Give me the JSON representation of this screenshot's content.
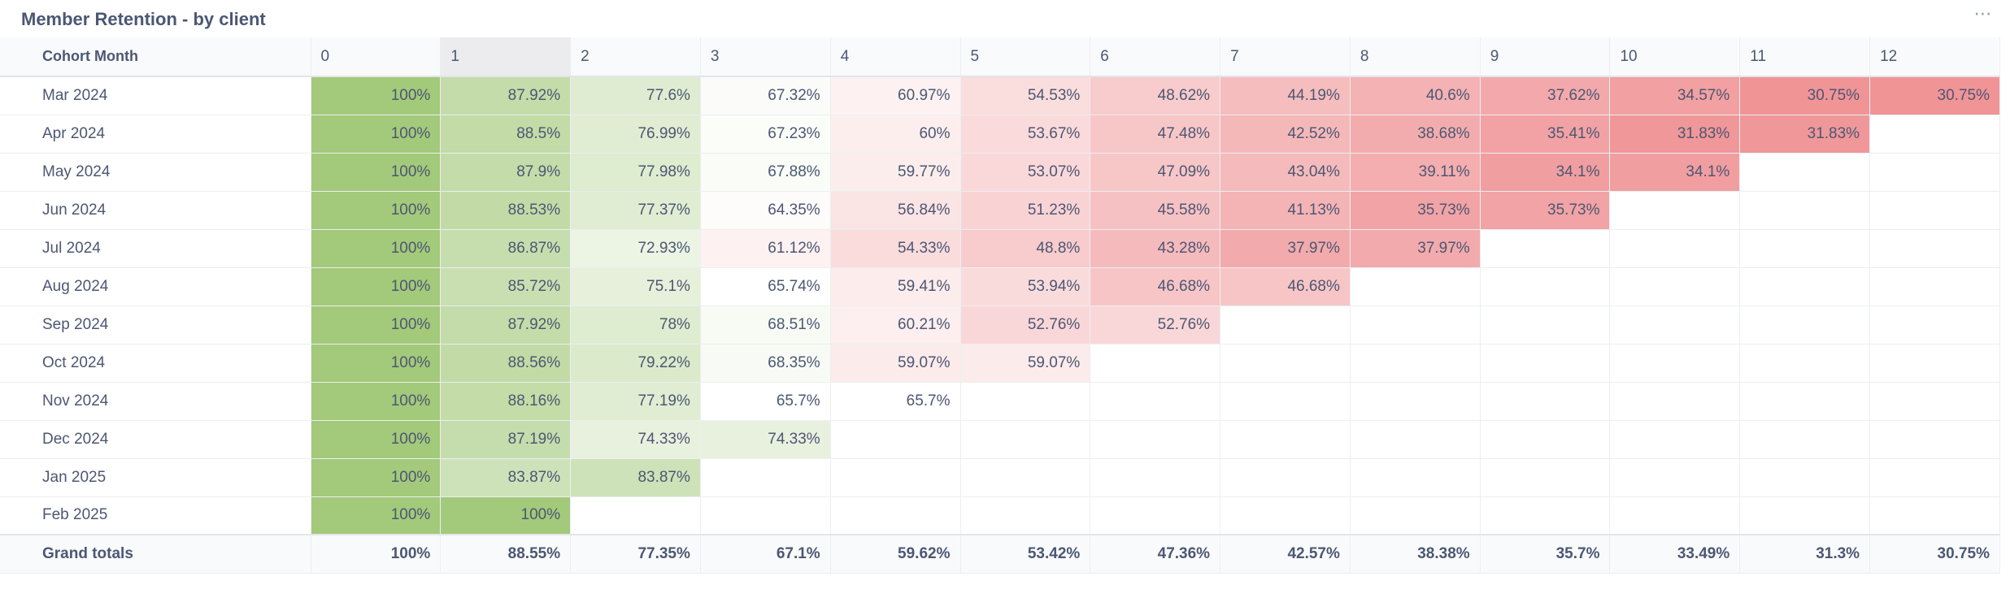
{
  "card": {
    "title": "Member Retention - by client",
    "more_icon": "⋯"
  },
  "colors": {
    "green_strong": "#a3c97a",
    "red_strong": "#f09496",
    "neutral": "#ffffff"
  },
  "table": {
    "row_header": "Cohort Month",
    "columns": [
      "0",
      "1",
      "2",
      "3",
      "4",
      "5",
      "6",
      "7",
      "8",
      "9",
      "10",
      "11",
      "12"
    ],
    "highlighted_column": "1",
    "rows": [
      {
        "month": "Mar 2024",
        "values": [
          "100%",
          "87.92%",
          "77.6%",
          "67.32%",
          "60.97%",
          "54.53%",
          "48.62%",
          "44.19%",
          "40.6%",
          "37.62%",
          "34.57%",
          "30.75%",
          "30.75%"
        ]
      },
      {
        "month": "Apr 2024",
        "values": [
          "100%",
          "88.5%",
          "76.99%",
          "67.23%",
          "60%",
          "53.67%",
          "47.48%",
          "42.52%",
          "38.68%",
          "35.41%",
          "31.83%",
          "31.83%",
          ""
        ]
      },
      {
        "month": "May 2024",
        "values": [
          "100%",
          "87.9%",
          "77.98%",
          "67.88%",
          "59.77%",
          "53.07%",
          "47.09%",
          "43.04%",
          "39.11%",
          "34.1%",
          "34.1%",
          "",
          ""
        ]
      },
      {
        "month": "Jun 2024",
        "values": [
          "100%",
          "88.53%",
          "77.37%",
          "64.35%",
          "56.84%",
          "51.23%",
          "45.58%",
          "41.13%",
          "35.73%",
          "35.73%",
          "",
          "",
          ""
        ]
      },
      {
        "month": "Jul 2024",
        "values": [
          "100%",
          "86.87%",
          "72.93%",
          "61.12%",
          "54.33%",
          "48.8%",
          "43.28%",
          "37.97%",
          "37.97%",
          "",
          "",
          "",
          ""
        ]
      },
      {
        "month": "Aug 2024",
        "values": [
          "100%",
          "85.72%",
          "75.1%",
          "65.74%",
          "59.41%",
          "53.94%",
          "46.68%",
          "46.68%",
          "",
          "",
          "",
          "",
          ""
        ]
      },
      {
        "month": "Sep 2024",
        "values": [
          "100%",
          "87.92%",
          "78%",
          "68.51%",
          "60.21%",
          "52.76%",
          "52.76%",
          "",
          "",
          "",
          "",
          "",
          ""
        ]
      },
      {
        "month": "Oct 2024",
        "values": [
          "100%",
          "88.56%",
          "79.22%",
          "68.35%",
          "59.07%",
          "59.07%",
          "",
          "",
          "",
          "",
          "",
          "",
          ""
        ]
      },
      {
        "month": "Nov 2024",
        "values": [
          "100%",
          "88.16%",
          "77.19%",
          "65.7%",
          "65.7%",
          "",
          "",
          "",
          "",
          "",
          "",
          "",
          ""
        ]
      },
      {
        "month": "Dec 2024",
        "values": [
          "100%",
          "87.19%",
          "74.33%",
          "74.33%",
          "",
          "",
          "",
          "",
          "",
          "",
          "",
          "",
          ""
        ]
      },
      {
        "month": "Jan 2025",
        "values": [
          "100%",
          "83.87%",
          "83.87%",
          "",
          "",
          "",
          "",
          "",
          "",
          "",
          "",
          "",
          ""
        ]
      },
      {
        "month": "Feb 2025",
        "values": [
          "100%",
          "100%",
          "",
          "",
          "",
          "",
          "",
          "",
          "",
          "",
          "",
          "",
          ""
        ]
      }
    ],
    "totals": {
      "label": "Grand totals",
      "values": [
        "100%",
        "88.55%",
        "77.35%",
        "67.1%",
        "59.62%",
        "53.42%",
        "47.36%",
        "42.57%",
        "38.38%",
        "35.7%",
        "33.49%",
        "31.3%",
        "30.75%"
      ]
    }
  }
}
